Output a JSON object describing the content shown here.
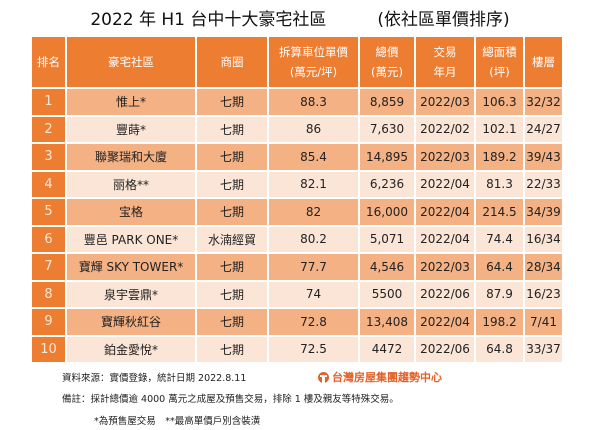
{
  "title": {
    "main": "2022 年 H1 台中十大豪宅社區",
    "sub": "(依社區單價排序)"
  },
  "table": {
    "headers": [
      {
        "l1": "排名",
        "l2": ""
      },
      {
        "l1": "豪宅社區",
        "l2": ""
      },
      {
        "l1": "商圈",
        "l2": ""
      },
      {
        "l1": "拆算車位單價",
        "l2": "(萬元/坪)"
      },
      {
        "l1": "總價",
        "l2": "(萬元)"
      },
      {
        "l1": "交易",
        "l2": "年月"
      },
      {
        "l1": "總面積",
        "l2": "(坪)"
      },
      {
        "l1": "樓層",
        "l2": ""
      }
    ],
    "rows": [
      [
        "1",
        "惟上*",
        "七期",
        "88.3",
        "8,859",
        "2022/03",
        "106.3",
        "32/32"
      ],
      [
        "2",
        "豐蒔*",
        "七期",
        "86",
        "7,630",
        "2022/02",
        "102.1",
        "24/27"
      ],
      [
        "3",
        "聯聚瑞和大廈",
        "七期",
        "85.4",
        "14,895",
        "2022/03",
        "189.2",
        "39/43"
      ],
      [
        "4",
        "丽格**",
        "七期",
        "82.1",
        "6,236",
        "2022/04",
        "81.3",
        "22/33"
      ],
      [
        "5",
        "宝格",
        "七期",
        "82",
        "16,000",
        "2022/04",
        "214.5",
        "34/39"
      ],
      [
        "6",
        "豐邑 PARK ONE*",
        "水湳經貿",
        "80.2",
        "5,071",
        "2022/04",
        "74.4",
        "16/34"
      ],
      [
        "7",
        "寶輝 SKY TOWER*",
        "七期",
        "77.7",
        "4,546",
        "2022/03",
        "64.4",
        "28/34"
      ],
      [
        "8",
        "泉宇雲鼎*",
        "七期",
        "74",
        "5500",
        "2022/06",
        "87.9",
        "16/23"
      ],
      [
        "9",
        "寶輝秋紅谷",
        "七期",
        "72.8",
        "13,408",
        "2022/04",
        "198.2",
        "7/41"
      ],
      [
        "10",
        "鉑金愛悅*",
        "七期",
        "72.5",
        "4472",
        "2022/06",
        "64.8",
        "33/37"
      ]
    ]
  },
  "footer": {
    "source": "資料來源：實價登錄，統計日期 2022.8.11",
    "note": "備註：採計總價逾 4000 萬元之成屋及預售交易，排除 1 樓及親友等特殊交易。",
    "legend": "*為預售屋交易　**最高單價戶別含裝潢",
    "logo": "台灣房屋集團趨勢中心"
  },
  "colors": {
    "header": "#ed7d31",
    "row_dark": "#f4b183",
    "row_light": "#fbe5d6",
    "logo": "#e2622a"
  }
}
